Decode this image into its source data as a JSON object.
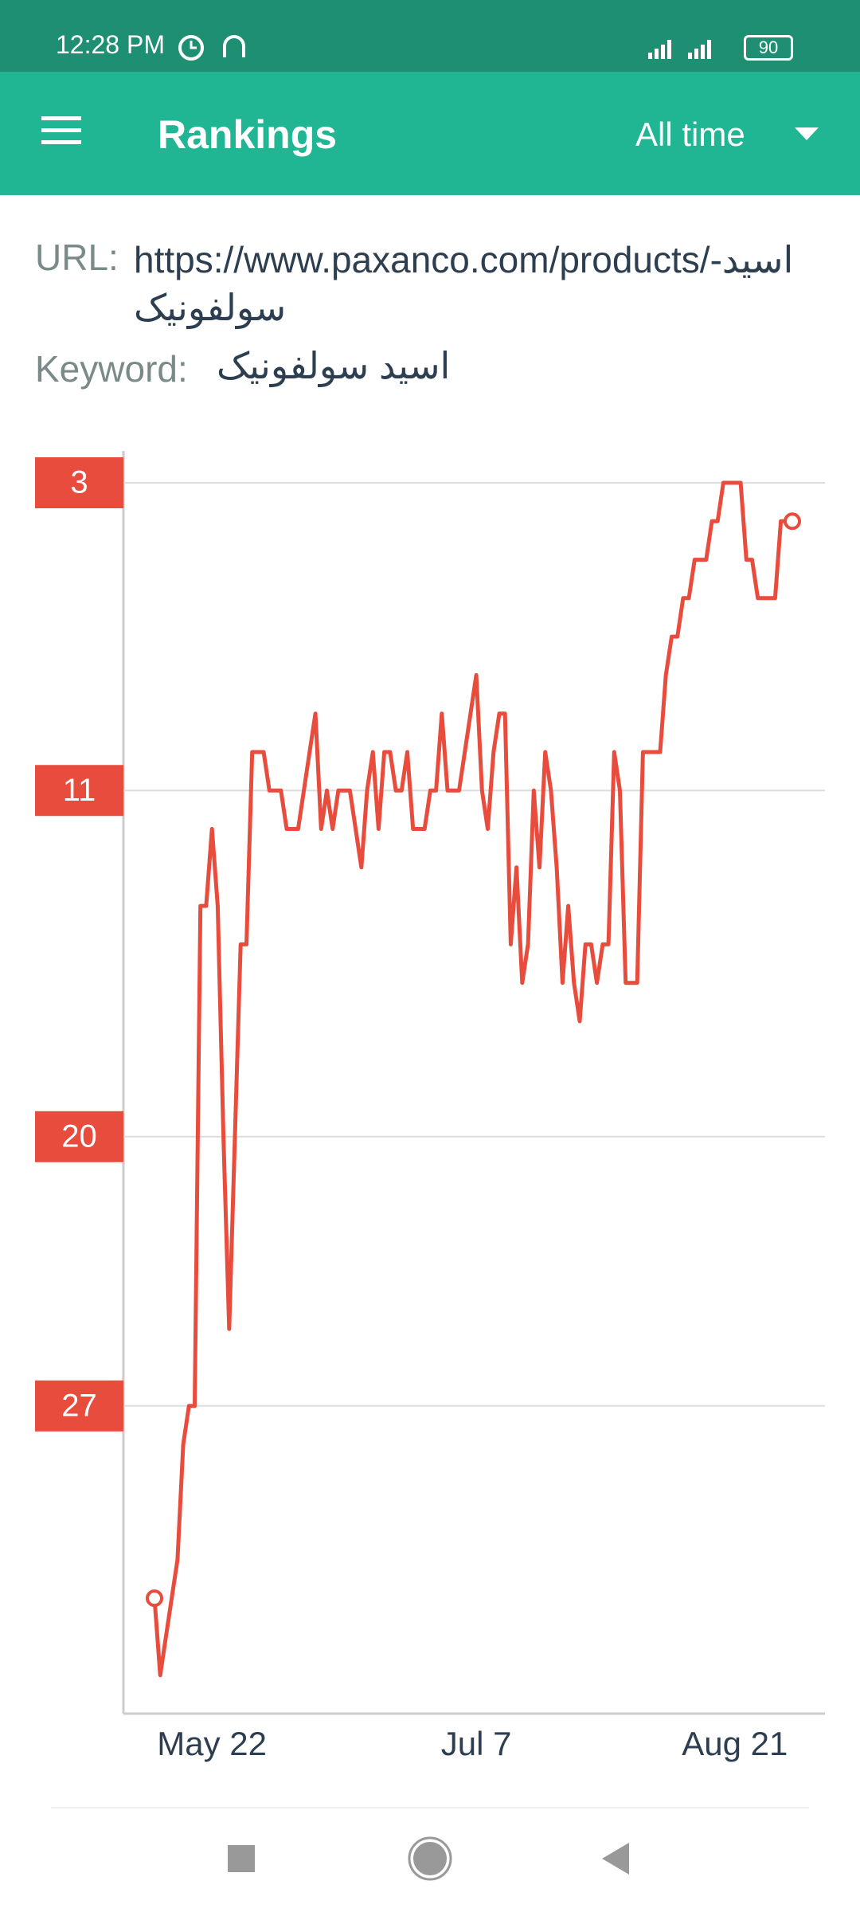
{
  "status_bar": {
    "time": "12:28 PM",
    "battery": "90"
  },
  "app_bar": {
    "title": "Rankings",
    "period": "All time"
  },
  "url": {
    "label": "URL:",
    "value": "https://www.paxanco.com/products/اسید-سولفونیک"
  },
  "keyword": {
    "label": "Keyword:",
    "value": "اسید سولفونیک"
  },
  "chart_data": {
    "type": "line",
    "categories": [
      null,
      null,
      null,
      null,
      null,
      null,
      null,
      null,
      null,
      null,
      "May 22",
      null,
      null,
      null,
      null,
      null,
      null,
      null,
      null,
      null,
      null,
      null,
      null,
      null,
      null,
      null,
      null,
      null,
      null,
      null,
      null,
      null,
      null,
      null,
      null,
      null,
      null,
      null,
      null,
      null,
      null,
      null,
      null,
      null,
      null,
      null,
      null,
      null,
      null,
      null,
      null,
      null,
      null,
      null,
      null,
      null,
      "Jul 7",
      null,
      null,
      null,
      null,
      null,
      null,
      null,
      null,
      null,
      null,
      null,
      null,
      null,
      null,
      null,
      null,
      null,
      null,
      null,
      null,
      null,
      null,
      null,
      null,
      null,
      null,
      null,
      null,
      null,
      null,
      null,
      null,
      null,
      null,
      null,
      null,
      null,
      null,
      null,
      null,
      null,
      null,
      null,
      null,
      "Aug 21",
      null,
      null,
      null,
      null,
      null,
      null,
      null,
      null,
      null,
      null
    ],
    "series": [
      {
        "color": "#e84c3d",
        "values": [
          32,
          34,
          33,
          32,
          31,
          28,
          27,
          27,
          14,
          14,
          12,
          14,
          20,
          25,
          20,
          15,
          15,
          10,
          10,
          10,
          11,
          11,
          11,
          12,
          12,
          12,
          11,
          10,
          9,
          12,
          11,
          12,
          11,
          11,
          11,
          12,
          13,
          11,
          10,
          12,
          10,
          10,
          11,
          11,
          10,
          12,
          12,
          12,
          11,
          11,
          9,
          11,
          11,
          11,
          10,
          9,
          8,
          11,
          12,
          10,
          9,
          9,
          15,
          13,
          16,
          15,
          11,
          13,
          10,
          11,
          13,
          16,
          14,
          16,
          17,
          15,
          15,
          16,
          15,
          15,
          10,
          11,
          16,
          16,
          16,
          10,
          10,
          10,
          10,
          8,
          7,
          7,
          6,
          6,
          5,
          5,
          5,
          4,
          4,
          3,
          3,
          3,
          3,
          5,
          5,
          6,
          6,
          6,
          6,
          4,
          4,
          4
        ]
      }
    ],
    "ylim": [
      35,
      3
    ],
    "yticks": [
      3,
      11,
      20,
      27
    ],
    "grid": true
  }
}
